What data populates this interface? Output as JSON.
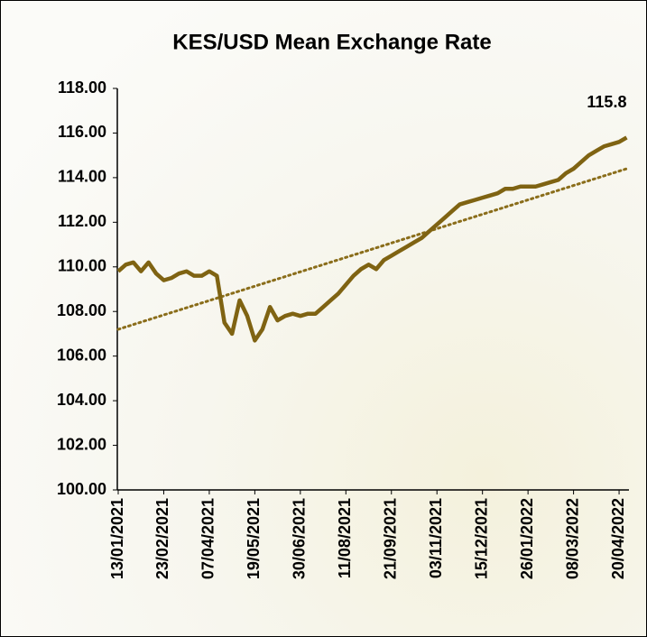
{
  "chart_data": {
    "type": "line",
    "title": "KES/USD Mean Exchange Rate",
    "categories": [
      "13/01/2021",
      null,
      null,
      null,
      null,
      null,
      "23/02/2021",
      null,
      null,
      null,
      null,
      null,
      "07/04/2021",
      null,
      null,
      null,
      null,
      null,
      "19/05/2021",
      null,
      null,
      null,
      null,
      null,
      "30/06/2021",
      null,
      null,
      null,
      null,
      null,
      "11/08/2021",
      null,
      null,
      null,
      null,
      null,
      "21/09/2021",
      null,
      null,
      null,
      null,
      null,
      "03/11/2021",
      null,
      null,
      null,
      null,
      null,
      "15/12/2021",
      null,
      null,
      null,
      null,
      null,
      "26/01/2022",
      null,
      null,
      null,
      null,
      null,
      "08/03/2022",
      null,
      null,
      null,
      null,
      null,
      "20/04/2022",
      null
    ],
    "values": [
      109.8,
      110.1,
      110.2,
      109.8,
      110.2,
      109.7,
      109.4,
      109.5,
      109.7,
      109.8,
      109.6,
      109.6,
      109.8,
      109.6,
      107.5,
      107.0,
      108.5,
      107.8,
      106.7,
      107.2,
      108.2,
      107.6,
      107.8,
      107.9,
      107.8,
      107.9,
      107.9,
      108.2,
      108.5,
      108.8,
      109.2,
      109.6,
      109.9,
      110.1,
      109.9,
      110.3,
      110.5,
      110.7,
      110.9,
      111.1,
      111.3,
      111.6,
      111.9,
      112.2,
      112.5,
      112.8,
      112.9,
      113.0,
      113.1,
      113.2,
      113.3,
      113.5,
      113.5,
      113.6,
      113.6,
      113.6,
      113.7,
      113.8,
      113.9,
      114.2,
      114.4,
      114.7,
      115.0,
      115.2,
      115.4,
      115.5,
      115.6,
      115.8
    ],
    "color": "#7f6312",
    "trendline": {
      "values": [
        107.2,
        114.4
      ],
      "color": "#8a6d1a"
    },
    "ylim": [
      100,
      118
    ],
    "yticks": [
      {
        "value": 100,
        "label": "100.00"
      },
      {
        "value": 102,
        "label": "102.00"
      },
      {
        "value": 104,
        "label": "104.00"
      },
      {
        "value": 106,
        "label": "106.00"
      },
      {
        "value": 108,
        "label": "108.00"
      },
      {
        "value": 110,
        "label": "110.00"
      },
      {
        "value": 112,
        "label": "112.00"
      },
      {
        "value": 114,
        "label": "114.00"
      },
      {
        "value": 116,
        "label": "116.00"
      },
      {
        "value": 118,
        "label": "118.00"
      }
    ],
    "grid": false
  }
}
